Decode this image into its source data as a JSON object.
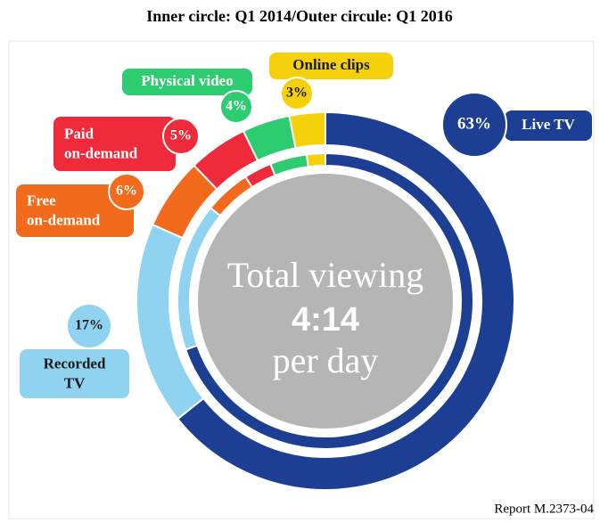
{
  "chart_data": {
    "type": "donut",
    "title": "Inner circle: Q1 2014/Outer circule: Q1 2016",
    "center_text": [
      "Total viewing",
      "4:14",
      "per day"
    ],
    "footnote": "Report M.2373-04",
    "categories": [
      "Live TV",
      "Recorded TV",
      "Free on-demand",
      "Paid on-demand",
      "Physical video",
      "Online clips"
    ],
    "colors": [
      "#1c3f94",
      "#8fd3f0",
      "#f26b1d",
      "#ee2a3b",
      "#2ecc71",
      "#f5d10c"
    ],
    "rings": [
      {
        "values": [
          69,
          16,
          5,
          3,
          4,
          2
        ]
      },
      {
        "values": [
          63,
          17,
          6,
          5,
          4,
          3
        ],
        "value_labels": [
          "63%",
          "17%",
          "6%",
          "5%",
          "4%",
          "3%"
        ]
      }
    ]
  }
}
